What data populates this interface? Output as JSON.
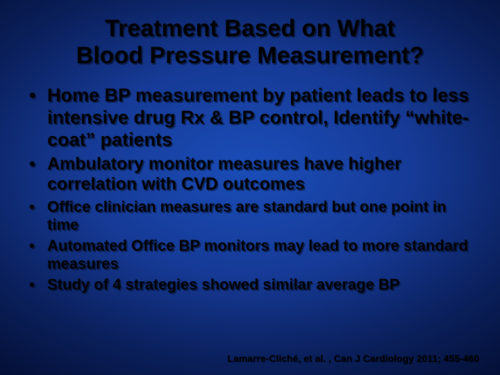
{
  "slide": {
    "background": {
      "gradient_center": "#1a4db8",
      "gradient_mid": "#0a1f5a",
      "gradient_edge": "#000000"
    },
    "text_color": "#000000",
    "text_shadow_color": "rgba(0,0,0,0.45)",
    "title": {
      "line1": "Treatment Based on What",
      "line2": "Blood Pressure Measurement?",
      "fontsize": 34,
      "font_weight": "bold",
      "align": "center"
    },
    "bullets": {
      "level1": {
        "fontsize": 27,
        "items": [
          "Home BP measurement by patient leads to less intensive drug Rx & BP control, Identify “white-coat” patients"
        ]
      },
      "level2": {
        "fontsize": 25,
        "items": [
          "Ambulatory monitor measures have higher correlation with CVD outcomes"
        ]
      },
      "level3": {
        "fontsize": 22,
        "items": [
          "Office clinician measures are standard but one point in time",
          "Automated Office BP monitors may lead to more standard measures",
          "Study of 4 strategies showed similar average BP"
        ]
      }
    },
    "citation": {
      "text": "Lamarre-Cliché, et al. , Can J Cardiology 2011; 455-460",
      "fontsize": 14,
      "align": "right"
    }
  }
}
